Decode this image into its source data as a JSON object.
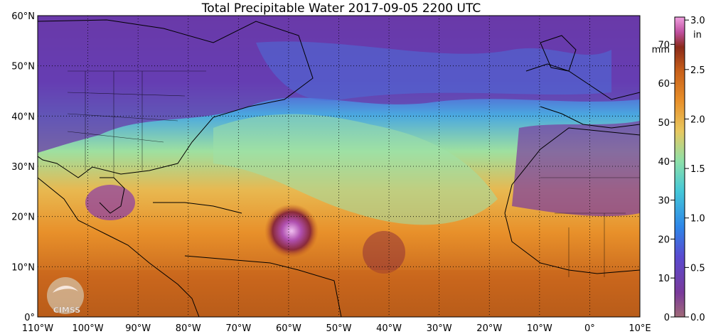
{
  "title": "Total Precipitable Water  2017-09-05 2200 UTC",
  "map": {
    "lat_labels": [
      "60°N",
      "50°N",
      "40°N",
      "30°N",
      "20°N",
      "10°N",
      "0°"
    ],
    "lon_labels": [
      "110°W",
      "100°W",
      "90°W",
      "80°W",
      "70°W",
      "60°W",
      "50°W",
      "40°W",
      "30°W",
      "20°W",
      "10°W",
      "0°",
      "10°E"
    ],
    "logo_text": "CIMSS"
  },
  "colorbar": {
    "mm_unit": "mm",
    "in_unit": "in",
    "mm_ticks": [
      "70",
      "60",
      "50",
      "40",
      "30",
      "20",
      "10",
      "0"
    ],
    "in_ticks": [
      "3.0",
      "2.5",
      "2.0",
      "1.5",
      "1.0",
      "0.5",
      "0.0"
    ],
    "colors": [
      "#a06a78",
      "#7a3a9a",
      "#5a4ad0",
      "#2e86e8",
      "#45c8d8",
      "#8ee0a8",
      "#e8c860",
      "#e8902a",
      "#c8601a",
      "#8a2a1a",
      "#c050a0",
      "#f0a0e0"
    ]
  }
}
